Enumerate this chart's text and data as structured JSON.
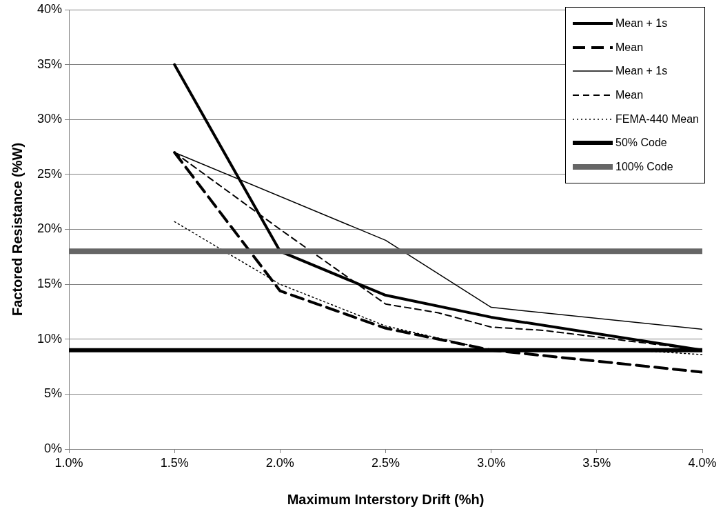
{
  "chart_data": {
    "type": "line",
    "xlabel": "Maximum Interstory Drift (%h)",
    "ylabel": "Factored Resistance (%W)",
    "xlim": [
      1.0,
      4.0
    ],
    "xticks": [
      {
        "value": 1.0,
        "label": "1.0%"
      },
      {
        "value": 1.5,
        "label": "1.5%"
      },
      {
        "value": 2.0,
        "label": "2.0%"
      },
      {
        "value": 2.5,
        "label": "2.5%"
      },
      {
        "value": 3.0,
        "label": "3.0%"
      },
      {
        "value": 3.5,
        "label": "3.5%"
      },
      {
        "value": 4.0,
        "label": "4.0%"
      }
    ],
    "ylim": [
      0,
      40
    ],
    "yticks": [
      {
        "value": 0,
        "label": "0%"
      },
      {
        "value": 5,
        "label": "5%"
      },
      {
        "value": 10,
        "label": "10%"
      },
      {
        "value": 15,
        "label": "15%"
      },
      {
        "value": 20,
        "label": "20%"
      },
      {
        "value": 25,
        "label": "25%"
      },
      {
        "value": 30,
        "label": "30%"
      },
      {
        "value": 35,
        "label": "35%"
      },
      {
        "value": 40,
        "label": "40%"
      }
    ],
    "grid": "y",
    "legend": "top right",
    "marker": "none",
    "series": [
      {
        "name": "Mean + 1s",
        "color": "#000000",
        "line_style": "solid",
        "x": [
          1.5,
          2.0,
          2.5,
          3.0,
          4.0
        ],
        "values": [
          35,
          18,
          14,
          12,
          9
        ]
      },
      {
        "name": "Mean",
        "color": "#000000",
        "line_style": "dashed",
        "x": [
          1.5,
          2.0,
          2.5,
          3.0,
          4.0
        ],
        "values": [
          27,
          14.4,
          11,
          9,
          7
        ]
      },
      {
        "name": "Mean + 1s",
        "color": "#000000",
        "line_style": "solid",
        "x": [
          1.5,
          2.5,
          3.0,
          4.0
        ],
        "values": [
          27,
          19,
          12.9,
          10.9
        ]
      },
      {
        "name": "Mean",
        "color": "#000000",
        "line_style": "dashed",
        "x": [
          1.5,
          2.0,
          2.5,
          2.75,
          3.0,
          3.25,
          4.0
        ],
        "values": [
          27,
          20,
          13.2,
          12.4,
          11.1,
          10.8,
          9
        ]
      },
      {
        "name": "FEMA-440 Mean",
        "color": "#000000",
        "line_style": "dotted",
        "x": [
          1.5,
          2.0,
          2.5,
          3.0,
          3.75,
          4.0
        ],
        "values": [
          20.7,
          15,
          11.2,
          9,
          8.9,
          8.6
        ]
      },
      {
        "name": "50% Code",
        "color": "#000000",
        "line_style": "solid",
        "x": [
          1.0,
          4.0
        ],
        "values": [
          9,
          9
        ]
      },
      {
        "name": "100% Code",
        "color": "#666666",
        "line_style": "solid",
        "x": [
          1.0,
          4.0
        ],
        "values": [
          18,
          18
        ]
      }
    ]
  }
}
